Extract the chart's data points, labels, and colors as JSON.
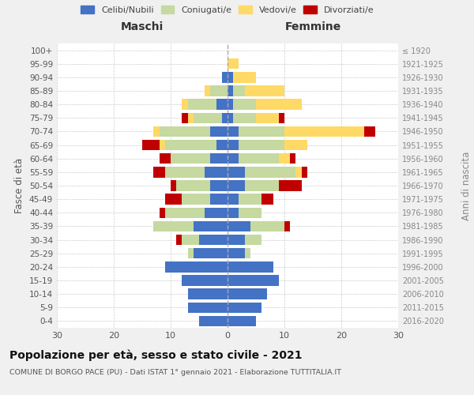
{
  "age_groups": [
    "0-4",
    "5-9",
    "10-14",
    "15-19",
    "20-24",
    "25-29",
    "30-34",
    "35-39",
    "40-44",
    "45-49",
    "50-54",
    "55-59",
    "60-64",
    "65-69",
    "70-74",
    "75-79",
    "80-84",
    "85-89",
    "90-94",
    "95-99",
    "100+"
  ],
  "birth_years": [
    "2016-2020",
    "2011-2015",
    "2006-2010",
    "2001-2005",
    "1996-2000",
    "1991-1995",
    "1986-1990",
    "1981-1985",
    "1976-1980",
    "1971-1975",
    "1966-1970",
    "1961-1965",
    "1956-1960",
    "1951-1955",
    "1946-1950",
    "1941-1945",
    "1936-1940",
    "1931-1935",
    "1926-1930",
    "1921-1925",
    "≤ 1920"
  ],
  "maschi": {
    "celibi": [
      5,
      7,
      7,
      8,
      11,
      6,
      5,
      6,
      4,
      3,
      3,
      4,
      3,
      2,
      3,
      1,
      2,
      0,
      1,
      0,
      0
    ],
    "coniugati": [
      0,
      0,
      0,
      0,
      0,
      1,
      3,
      7,
      7,
      5,
      6,
      7,
      7,
      9,
      9,
      5,
      5,
      3,
      0,
      0,
      0
    ],
    "vedovi": [
      0,
      0,
      0,
      0,
      0,
      0,
      0,
      0,
      0,
      0,
      0,
      0,
      0,
      1,
      1,
      1,
      1,
      1,
      0,
      0,
      0
    ],
    "divorziati": [
      0,
      0,
      0,
      0,
      0,
      0,
      1,
      0,
      1,
      3,
      1,
      2,
      2,
      3,
      0,
      1,
      0,
      0,
      0,
      0,
      0
    ]
  },
  "femmine": {
    "nubili": [
      5,
      6,
      7,
      9,
      8,
      3,
      3,
      4,
      2,
      2,
      3,
      3,
      2,
      2,
      2,
      1,
      1,
      1,
      1,
      0,
      0
    ],
    "coniugate": [
      0,
      0,
      0,
      0,
      0,
      1,
      3,
      6,
      4,
      4,
      6,
      9,
      7,
      8,
      8,
      4,
      4,
      2,
      0,
      0,
      0
    ],
    "vedove": [
      0,
      0,
      0,
      0,
      0,
      0,
      0,
      0,
      0,
      0,
      0,
      1,
      2,
      4,
      14,
      4,
      8,
      7,
      4,
      2,
      0
    ],
    "divorziate": [
      0,
      0,
      0,
      0,
      0,
      0,
      0,
      1,
      0,
      2,
      4,
      1,
      1,
      0,
      2,
      1,
      0,
      0,
      0,
      0,
      0
    ]
  },
  "colors": {
    "celibi_nubili": "#4472c4",
    "coniugati": "#c5d9a0",
    "vedovi": "#ffd966",
    "divorziati": "#c00000"
  },
  "xlim": 30,
  "title": "Popolazione per età, sesso e stato civile - 2021",
  "subtitle": "COMUNE DI BORGO PACE (PU) - Dati ISTAT 1° gennaio 2021 - Elaborazione TUTTITALIA.IT",
  "ylabel_left": "Fasce di età",
  "ylabel_right": "Anni di nascita",
  "xlabel_maschi": "Maschi",
  "xlabel_femmine": "Femmine",
  "bg_color": "#f0f0f0",
  "plot_bg_color": "#ffffff",
  "grid_color": "#cccccc"
}
